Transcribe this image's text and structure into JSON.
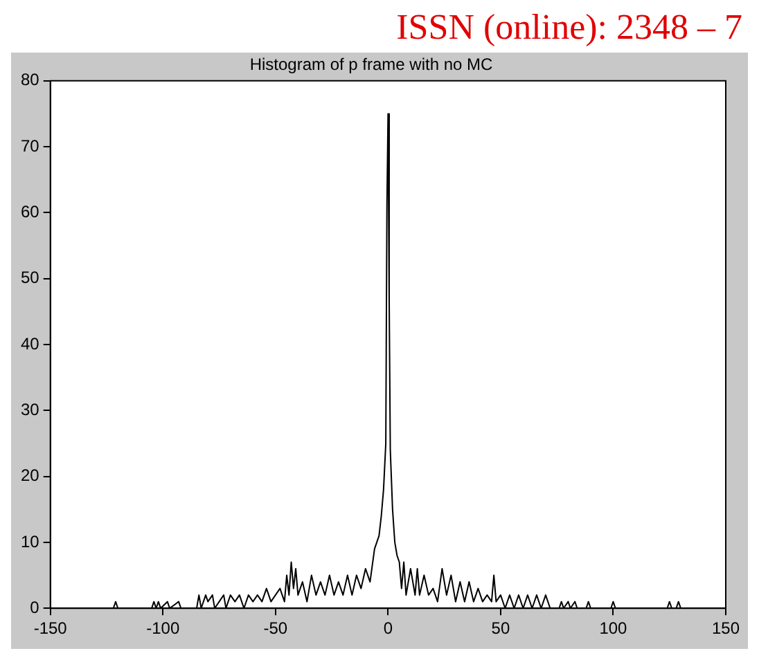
{
  "chart_data": {
    "type": "line",
    "title": "Histogram of p frame with no MC",
    "annotations": [
      "ISSN (online): 2348 – 7"
    ],
    "x": [
      -122,
      -121,
      -120,
      -105,
      -104,
      -103,
      -102,
      -101,
      -98,
      -97,
      -93,
      -92,
      -85,
      -84,
      -83,
      -81,
      -80,
      -78,
      -77,
      -75,
      -73,
      -72,
      -70,
      -68,
      -66,
      -64,
      -62,
      -60,
      -58,
      -56,
      -54,
      -52,
      -50,
      -48,
      -46,
      -45,
      -44,
      -43,
      -42,
      -41,
      -40,
      -38,
      -36,
      -34,
      -32,
      -30,
      -28,
      -26,
      -24,
      -22,
      -20,
      -18,
      -16,
      -14,
      -12,
      -10,
      -8,
      -6,
      -4,
      -3,
      -2,
      -1,
      -0.5,
      0,
      0.5,
      1,
      2,
      3,
      4,
      5,
      6,
      7,
      8,
      10,
      12,
      13,
      14,
      16,
      18,
      20,
      22,
      24,
      26,
      28,
      30,
      32,
      34,
      36,
      38,
      40,
      42,
      44,
      46,
      47,
      48,
      50,
      52,
      54,
      56,
      58,
      60,
      62,
      64,
      66,
      68,
      70,
      72,
      76,
      77,
      78,
      80,
      81,
      83,
      84,
      88,
      89,
      90,
      99,
      100,
      101,
      124,
      125,
      126,
      128,
      129,
      130
    ],
    "series": [
      {
        "color": "#000000",
        "values": [
          0,
          1,
          0,
          0,
          1,
          0,
          1,
          0,
          1,
          0,
          1,
          0,
          0,
          2,
          0,
          2,
          1,
          2,
          0,
          1,
          2,
          0,
          2,
          1,
          2,
          0,
          2,
          1,
          2,
          1,
          3,
          1,
          2,
          3,
          1,
          5,
          2,
          7,
          3,
          6,
          2,
          4,
          1,
          5,
          2,
          4,
          2,
          5,
          2,
          4,
          2,
          5,
          2,
          5,
          3,
          6,
          4,
          9,
          11,
          14,
          18,
          25,
          61,
          75,
          47,
          24,
          15,
          10,
          8,
          7,
          3,
          7,
          2,
          6,
          2,
          6,
          2,
          5,
          2,
          3,
          1,
          6,
          2,
          5,
          1,
          4,
          1,
          4,
          1,
          3,
          1,
          2,
          1,
          5,
          1,
          2,
          0,
          2,
          0,
          2,
          0,
          2,
          0,
          2,
          0,
          2,
          0,
          0,
          1,
          0,
          1,
          0,
          1,
          0,
          0,
          1,
          0,
          0,
          1,
          0,
          0,
          1,
          0,
          0,
          1,
          0
        ]
      }
    ],
    "xlim": [
      -150,
      150
    ],
    "xticks": [
      -150,
      -100,
      -50,
      0,
      50,
      100,
      150
    ],
    "ylim": [
      0,
      80
    ],
    "yticks": [
      0,
      10,
      20,
      30,
      40,
      50,
      60,
      70,
      80
    ],
    "grid": false,
    "legend": false,
    "marker": "none",
    "line_style": "solid"
  }
}
